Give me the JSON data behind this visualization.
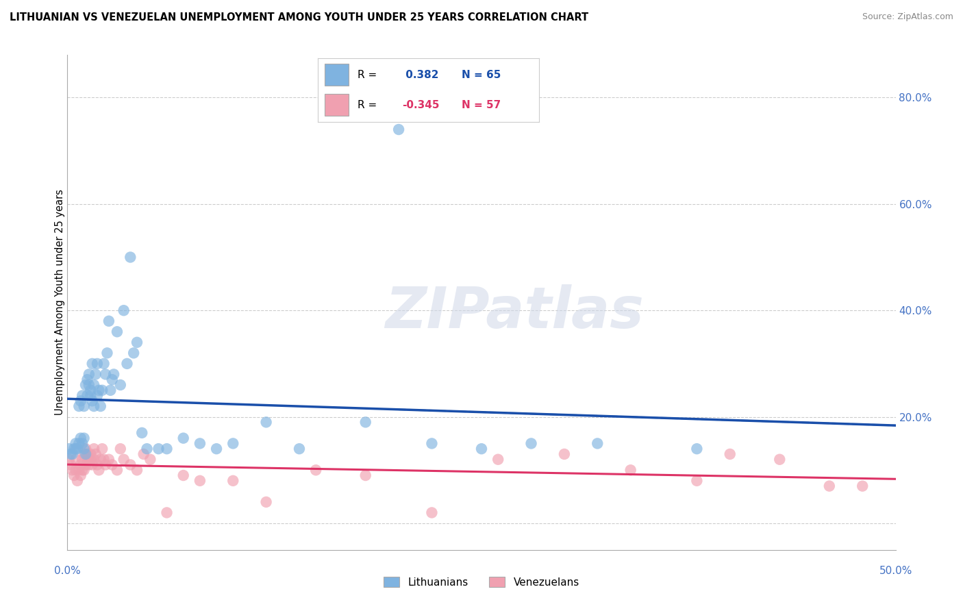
{
  "title": "LITHUANIAN VS VENEZUELAN UNEMPLOYMENT AMONG YOUTH UNDER 25 YEARS CORRELATION CHART",
  "source": "Source: ZipAtlas.com",
  "ylabel": "Unemployment Among Youth under 25 years",
  "xlim": [
    0.0,
    0.5
  ],
  "ylim": [
    -0.05,
    0.88
  ],
  "plot_ylim": [
    -0.05,
    0.88
  ],
  "xticks": [
    0.0,
    0.1,
    0.2,
    0.3,
    0.4,
    0.5
  ],
  "xticklabels_show": [
    "0.0%",
    "50.0%"
  ],
  "xticklabels_pos": [
    0.0,
    0.5
  ],
  "ytick_vals": [
    0.0,
    0.2,
    0.4,
    0.6,
    0.8
  ],
  "ytick_labels": [
    "",
    "20.0%",
    "40.0%",
    "60.0%",
    "80.0%"
  ],
  "blue_color": "#7fb3e0",
  "pink_color": "#f0a0b0",
  "blue_line_color": "#1a4faa",
  "pink_line_color": "#dd3366",
  "dashed_color": "#99bbee",
  "grid_color": "#cccccc",
  "watermark_text": "ZIPatlas",
  "watermark_color": "#d0d8e8",
  "blue_legend_label": "Lithuanians",
  "pink_legend_label": "Venezuelans",
  "blue_scatter_x": [
    0.001,
    0.002,
    0.003,
    0.004,
    0.005,
    0.005,
    0.006,
    0.007,
    0.007,
    0.008,
    0.008,
    0.009,
    0.009,
    0.01,
    0.01,
    0.01,
    0.011,
    0.011,
    0.012,
    0.012,
    0.013,
    0.013,
    0.014,
    0.014,
    0.015,
    0.015,
    0.016,
    0.016,
    0.017,
    0.018,
    0.018,
    0.019,
    0.02,
    0.021,
    0.022,
    0.023,
    0.024,
    0.025,
    0.026,
    0.027,
    0.028,
    0.03,
    0.032,
    0.034,
    0.036,
    0.038,
    0.04,
    0.042,
    0.045,
    0.048,
    0.055,
    0.06,
    0.07,
    0.08,
    0.09,
    0.1,
    0.12,
    0.14,
    0.18,
    0.2,
    0.22,
    0.25,
    0.28,
    0.32,
    0.38
  ],
  "blue_scatter_y": [
    0.14,
    0.13,
    0.13,
    0.14,
    0.14,
    0.15,
    0.14,
    0.15,
    0.22,
    0.16,
    0.23,
    0.15,
    0.24,
    0.14,
    0.16,
    0.22,
    0.13,
    0.26,
    0.24,
    0.27,
    0.26,
    0.28,
    0.24,
    0.25,
    0.23,
    0.3,
    0.22,
    0.26,
    0.28,
    0.3,
    0.24,
    0.25,
    0.22,
    0.25,
    0.3,
    0.28,
    0.32,
    0.38,
    0.25,
    0.27,
    0.28,
    0.36,
    0.26,
    0.4,
    0.3,
    0.5,
    0.32,
    0.34,
    0.17,
    0.14,
    0.14,
    0.14,
    0.16,
    0.15,
    0.14,
    0.15,
    0.19,
    0.14,
    0.19,
    0.74,
    0.15,
    0.14,
    0.15,
    0.15,
    0.14
  ],
  "pink_scatter_x": [
    0.001,
    0.002,
    0.003,
    0.004,
    0.005,
    0.005,
    0.006,
    0.007,
    0.008,
    0.008,
    0.009,
    0.009,
    0.01,
    0.01,
    0.011,
    0.011,
    0.012,
    0.012,
    0.013,
    0.013,
    0.014,
    0.014,
    0.015,
    0.016,
    0.016,
    0.017,
    0.018,
    0.019,
    0.02,
    0.021,
    0.022,
    0.023,
    0.025,
    0.027,
    0.03,
    0.032,
    0.034,
    0.038,
    0.042,
    0.046,
    0.05,
    0.06,
    0.07,
    0.08,
    0.1,
    0.12,
    0.15,
    0.18,
    0.22,
    0.26,
    0.3,
    0.34,
    0.38,
    0.4,
    0.43,
    0.46,
    0.48
  ],
  "pink_scatter_y": [
    0.12,
    0.11,
    0.1,
    0.09,
    0.12,
    0.1,
    0.08,
    0.1,
    0.09,
    0.11,
    0.1,
    0.12,
    0.13,
    0.1,
    0.11,
    0.14,
    0.12,
    0.13,
    0.11,
    0.12,
    0.12,
    0.13,
    0.11,
    0.14,
    0.12,
    0.13,
    0.11,
    0.1,
    0.12,
    0.14,
    0.12,
    0.11,
    0.12,
    0.11,
    0.1,
    0.14,
    0.12,
    0.11,
    0.1,
    0.13,
    0.12,
    0.02,
    0.09,
    0.08,
    0.08,
    0.04,
    0.1,
    0.09,
    0.02,
    0.12,
    0.13,
    0.1,
    0.08,
    0.13,
    0.12,
    0.07,
    0.07
  ]
}
